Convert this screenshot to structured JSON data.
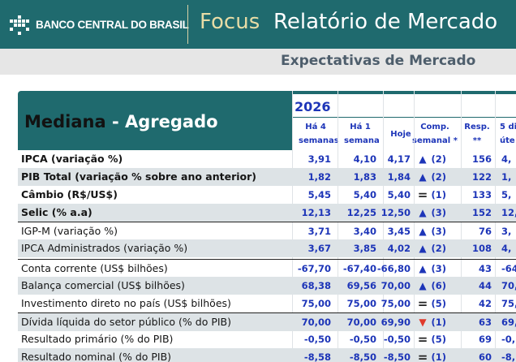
{
  "header": {
    "brand": "BANCO CENTRAL DO BRASIL",
    "product": "Focus",
    "report_title": "Relatório de Mercado",
    "colors": {
      "primary": "#1f6a6e",
      "accent": "#e7dca6",
      "value_blue": "#1d35b8",
      "down_red": "#e03a2b"
    },
    "logo_icon": "bcb-logo-icon"
  },
  "subtitle": "Expectativas de Mercado",
  "table": {
    "title_dark": "Mediana",
    "title_sep": " - ",
    "title_light": "Agregado",
    "year": "2026",
    "columns": {
      "ha4": [
        "Há 4",
        "semanas"
      ],
      "ha1": [
        "Há 1",
        "semana"
      ],
      "hoje": "Hoje",
      "comp": [
        "Comp.",
        "semanal *"
      ],
      "resp": [
        "Resp.",
        "**"
      ],
      "five": [
        "5 di",
        "úte"
      ]
    },
    "rows": [
      {
        "label": "IPCA (variação %)",
        "ha4": "3,91",
        "ha1": "4,10",
        "hoje": "4,17",
        "comp": "up",
        "comp_n": "(2)",
        "resp": "156",
        "five": "4,"
      },
      {
        "label": "PIB Total (variação % sobre ano anterior)",
        "ha4": "1,82",
        "ha1": "1,83",
        "hoje": "1,84",
        "comp": "up",
        "comp_n": "(2)",
        "resp": "122",
        "five": "1,"
      },
      {
        "label": "Câmbio (R$/US$)",
        "ha4": "5,45",
        "ha1": "5,40",
        "hoje": "5,40",
        "comp": "eq",
        "comp_n": "(1)",
        "resp": "133",
        "five": "5,"
      },
      {
        "label": "Selic (% a.a)",
        "ha4": "12,13",
        "ha1": "12,25",
        "hoje": "12,50",
        "comp": "up",
        "comp_n": "(3)",
        "resp": "152",
        "five": "12,"
      },
      {
        "label": "IGP-M (variação %)",
        "ha4": "3,71",
        "ha1": "3,40",
        "hoje": "3,45",
        "comp": "up",
        "comp_n": "(3)",
        "resp": "76",
        "five": "3,"
      },
      {
        "label": "IPCA Administrados (variação %)",
        "ha4": "3,67",
        "ha1": "3,85",
        "hoje": "4,02",
        "comp": "up",
        "comp_n": "(2)",
        "resp": "108",
        "five": "4,"
      },
      {
        "label": "Conta corrente (US$ bilhões)",
        "ha4": "-67,70",
        "ha1": "-67,40",
        "hoje": "-66,80",
        "comp": "up",
        "comp_n": "(3)",
        "resp": "43",
        "five": "-64,"
      },
      {
        "label": "Balança comercial (US$ bilhões)",
        "ha4": "68,38",
        "ha1": "69,56",
        "hoje": "70,00",
        "comp": "up",
        "comp_n": "(6)",
        "resp": "44",
        "five": "70,"
      },
      {
        "label": "Investimento direto no país (US$ bilhões)",
        "ha4": "75,00",
        "ha1": "75,00",
        "hoje": "75,00",
        "comp": "eq",
        "comp_n": "(5)",
        "resp": "42",
        "five": "75,"
      },
      {
        "label": "Dívida líquida do setor público (% do PIB)",
        "ha4": "70,00",
        "ha1": "70,00",
        "hoje": "69,90",
        "comp": "down",
        "comp_n": "(1)",
        "resp": "63",
        "five": "69,"
      },
      {
        "label": "Resultado primário (% do PIB)",
        "ha4": "-0,50",
        "ha1": "-0,50",
        "hoje": "-0,50",
        "comp": "eq",
        "comp_n": "(5)",
        "resp": "69",
        "five": "-0,"
      },
      {
        "label": "Resultado nominal (% do PIB)",
        "ha4": "-8,58",
        "ha1": "-8,50",
        "hoje": "-8,50",
        "comp": "eq",
        "comp_n": "(1)",
        "resp": "60",
        "five": "-8,"
      }
    ]
  }
}
